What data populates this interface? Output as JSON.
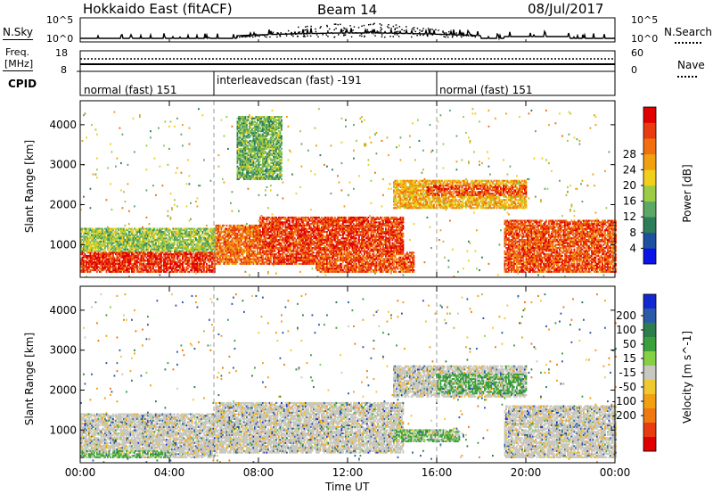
{
  "header": {
    "title": "Hokkaido East (fitACF)",
    "beam": "Beam 14",
    "date": "08/Jul/2017"
  },
  "sky_panel": {
    "left_label": "N.Sky",
    "left_ticks": [
      "10^5",
      "10^0"
    ],
    "right_ticks": [
      "10^5",
      "10^0"
    ],
    "right_label": "N.Search",
    "right_label_style": "dotted"
  },
  "freq_panel": {
    "left_label_line1": "Freq.",
    "left_label_line2": "[MHz]",
    "left_ticks": [
      "18",
      "8"
    ],
    "right_ticks": [
      "60",
      "0"
    ],
    "right_label": "Nave",
    "right_label_style": "dotted"
  },
  "cpid_panel": {
    "label": "CPID",
    "segments": [
      {
        "name": "normal (fast) 151",
        "start_hour": 0,
        "end_hour": 6
      },
      {
        "name": "interleavedscan (fast) -191",
        "start_hour": 6,
        "end_hour": 16
      },
      {
        "name": "normal (fast) 151",
        "start_hour": 16,
        "end_hour": 24
      }
    ]
  },
  "axes": {
    "x_tick_labels": [
      "00:00",
      "04:00",
      "08:00",
      "12:00",
      "16:00",
      "20:00",
      "00:00"
    ],
    "x_tick_hours": [
      0,
      4,
      8,
      12,
      16,
      20,
      24
    ],
    "xlabel": "Time UT",
    "ylabel": "Slant Range [km]",
    "y_tick_labels": [
      "1000",
      "2000",
      "3000",
      "4000"
    ],
    "y_tick_values": [
      1000,
      2000,
      3000,
      4000
    ],
    "ylim": [
      180,
      4600
    ],
    "xlim_hours": [
      0,
      24
    ]
  },
  "colorbars": {
    "power": {
      "label": "Power [dB]",
      "tick_labels": [
        "4",
        "8",
        "12",
        "16",
        "20",
        "24",
        "28"
      ],
      "colors": [
        "#0a14e6",
        "#1e50a0",
        "#2e7d5a",
        "#5ca864",
        "#9ccc45",
        "#f0d01c",
        "#f0a010",
        "#f07010",
        "#e83c10",
        "#e00000"
      ]
    },
    "velocity": {
      "label": "Velocity [m s^-1]",
      "tick_labels": [
        "200",
        "100",
        "50",
        "15",
        "-15",
        "-50",
        "-100",
        "-200"
      ],
      "colors": [
        "#1428d0",
        "#2a5aa8",
        "#2e7d4c",
        "#3aa03a",
        "#86d046",
        "#c8c8c0",
        "#f0c832",
        "#f0a010",
        "#f07810",
        "#e83c10",
        "#e00000"
      ]
    }
  },
  "chart_data": [
    {
      "type": "heatmap",
      "title": "Power",
      "xlabel": "Time UT",
      "ylabel": "Slant Range [km]",
      "x_range_hours": [
        0,
        24
      ],
      "y_range_km": [
        180,
        4600
      ],
      "value_label": "Power [dB]",
      "regions": [
        {
          "t0": 0.0,
          "t1": 6.0,
          "r0": 300,
          "r1": 800,
          "value": 28
        },
        {
          "t0": 0.0,
          "t1": 6.0,
          "r0": 800,
          "r1": 1400,
          "value": 14
        },
        {
          "t0": 6.0,
          "t1": 8.0,
          "r0": 500,
          "r1": 1500,
          "value": 24
        },
        {
          "t0": 8.0,
          "t1": 14.5,
          "r0": 500,
          "r1": 1700,
          "value": 27
        },
        {
          "t0": 10.5,
          "t1": 15.0,
          "r0": 300,
          "r1": 800,
          "value": 26
        },
        {
          "t0": 14.0,
          "t1": 20.0,
          "r0": 1900,
          "r1": 2600,
          "value": 20
        },
        {
          "t0": 15.5,
          "t1": 20.0,
          "r0": 2200,
          "r1": 2500,
          "value": 26
        },
        {
          "t0": 19.0,
          "t1": 24.0,
          "r0": 300,
          "r1": 1600,
          "value": 26
        },
        {
          "t0": 7.0,
          "t1": 9.0,
          "r0": 2600,
          "r1": 4200,
          "value": 12
        }
      ]
    },
    {
      "type": "heatmap",
      "title": "Velocity",
      "xlabel": "Time UT",
      "ylabel": "Slant Range [km]",
      "x_range_hours": [
        0,
        24
      ],
      "y_range_km": [
        180,
        4600
      ],
      "value_label": "Velocity [m s^-1]",
      "regions": [
        {
          "t0": 0.0,
          "t1": 6.0,
          "r0": 300,
          "r1": 1400,
          "value": 0
        },
        {
          "t0": 6.0,
          "t1": 14.5,
          "r0": 400,
          "r1": 1700,
          "value": 0
        },
        {
          "t0": 14.0,
          "t1": 20.0,
          "r0": 1800,
          "r1": 2600,
          "value": 0
        },
        {
          "t0": 19.0,
          "t1": 24.0,
          "r0": 300,
          "r1": 1600,
          "value": 0
        },
        {
          "t0": 0.0,
          "t1": 4.0,
          "r0": 300,
          "r1": 500,
          "value": 20
        },
        {
          "t0": 14.0,
          "t1": 17.0,
          "r0": 700,
          "r1": 1000,
          "value": 20
        },
        {
          "t0": 16.0,
          "t1": 20.0,
          "r0": 1900,
          "r1": 2400,
          "value": 25
        }
      ]
    }
  ]
}
